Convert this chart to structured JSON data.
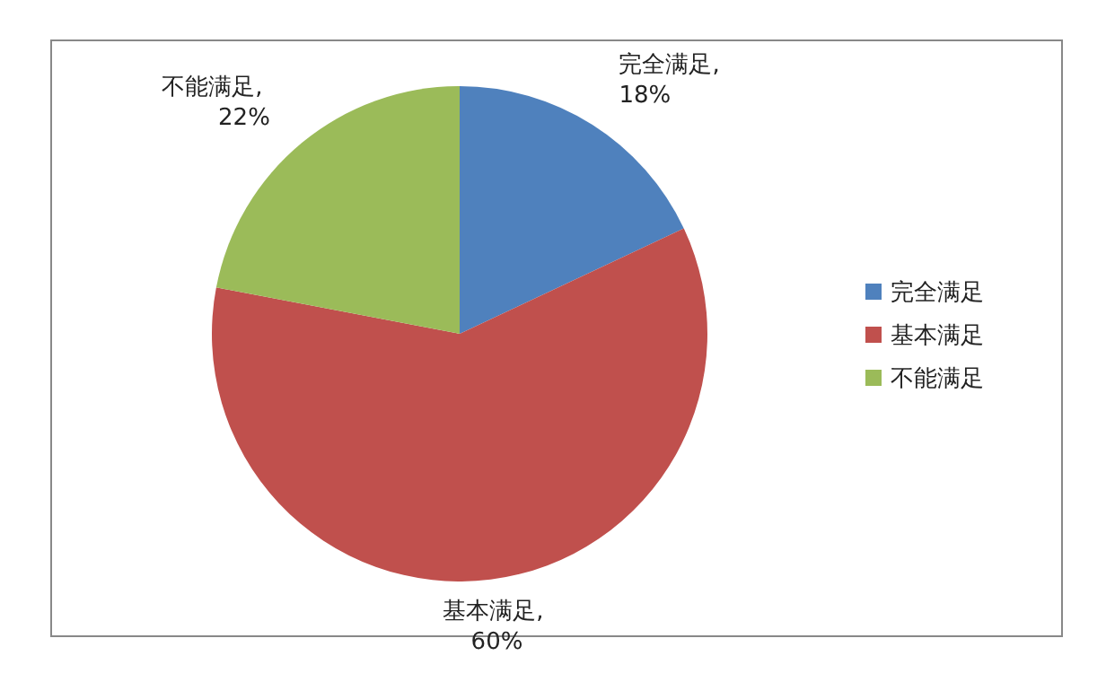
{
  "chart_data": {
    "type": "pie",
    "categories": [
      "完全满足",
      "基本满足",
      "不能满足"
    ],
    "values": [
      18,
      60,
      22
    ],
    "colors": [
      "#4f81bd",
      "#c0504d",
      "#9bbb59"
    ],
    "value_labels": [
      "完全满足, 18%",
      "基本满足, 60%",
      "不能满足, 22%"
    ],
    "legend": "right"
  }
}
